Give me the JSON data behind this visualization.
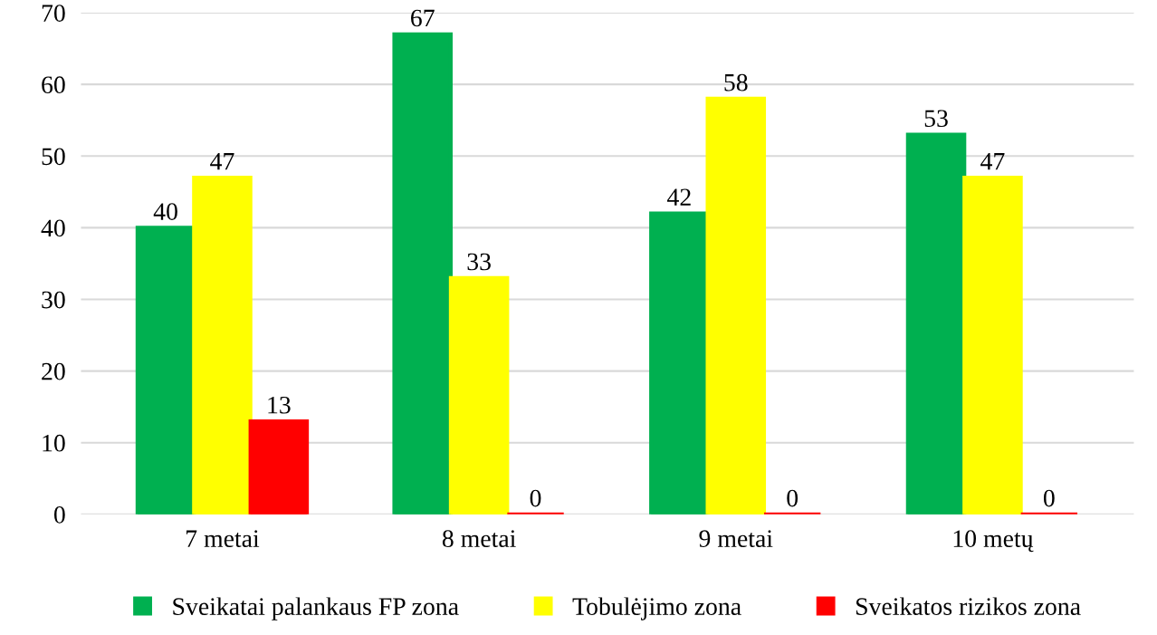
{
  "chart_data": {
    "type": "bar",
    "categories": [
      "7 metai",
      "8 metai",
      "9 metai",
      "10 metų"
    ],
    "series": [
      {
        "name": "Sveikatai palankaus FP zona",
        "color": "#00b050",
        "values": [
          40,
          67,
          42,
          53
        ]
      },
      {
        "name": "Tobulėjimo zona",
        "color": "#ffff00",
        "values": [
          47,
          33,
          58,
          47
        ]
      },
      {
        "name": "Sveikatos rizikos zona",
        "color": "#ff0000",
        "values": [
          13,
          0,
          0,
          0
        ]
      }
    ],
    "ylim": [
      0,
      70
    ],
    "yticks": [
      0,
      10,
      20,
      30,
      40,
      50,
      60,
      70
    ],
    "grid": "y",
    "legend": "bottom",
    "data_labels": true
  }
}
